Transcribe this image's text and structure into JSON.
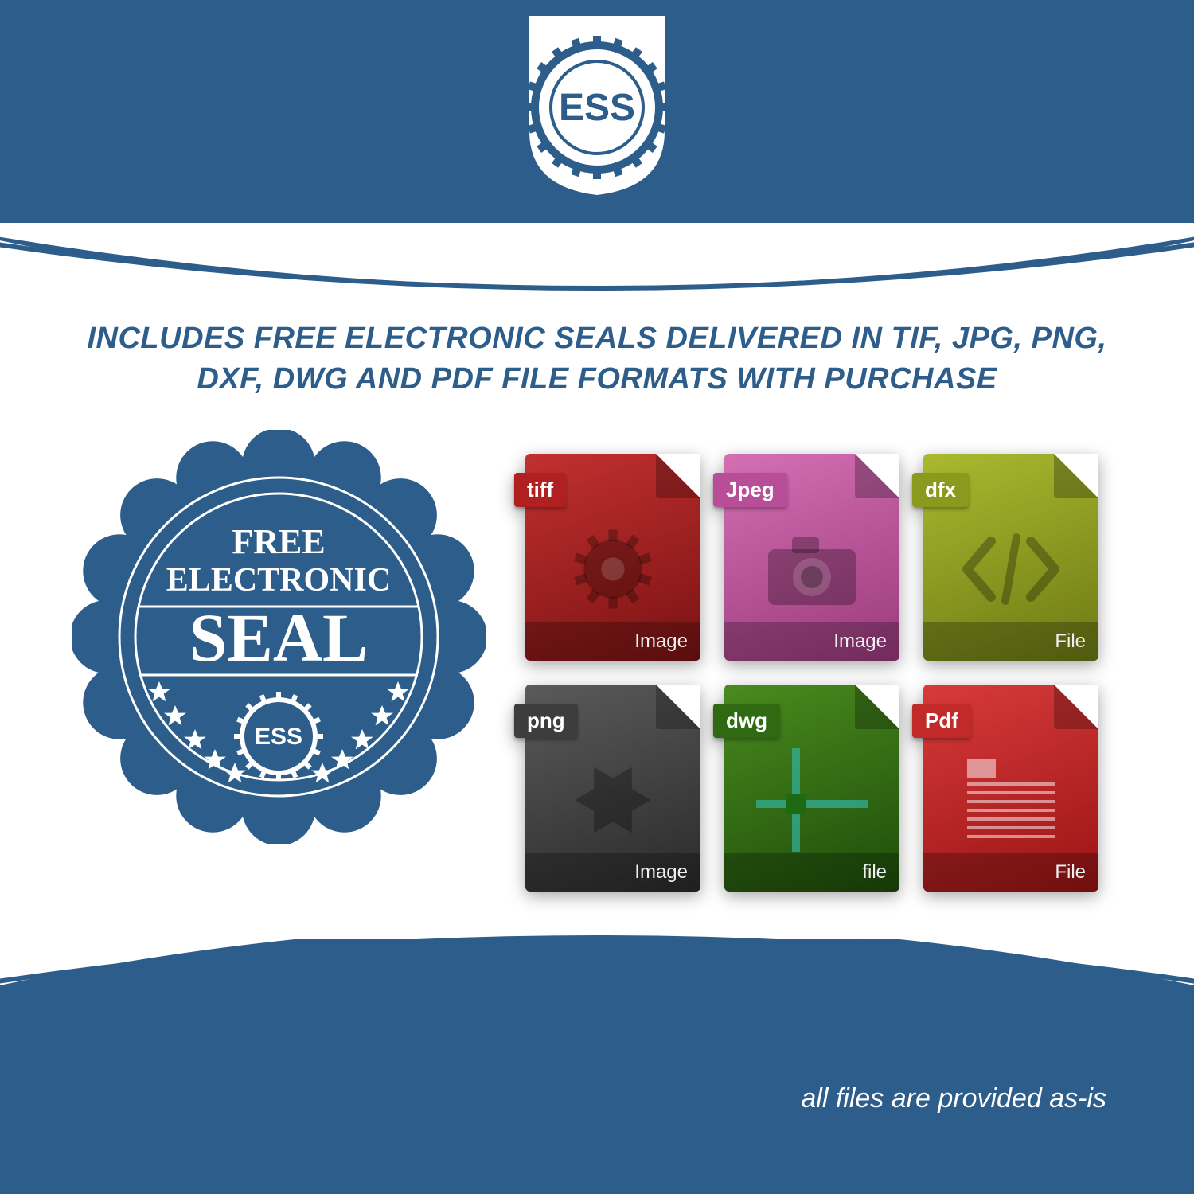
{
  "colors": {
    "brand_blue": "#2d5d8a",
    "white": "#ffffff",
    "shadow": "rgba(0,0,0,0.35)"
  },
  "logo": {
    "text": "ESS"
  },
  "headline": "INCLUDES FREE ELECTRONIC SEALS DELIVERED IN TIF, JPG, PNG, DXF, DWG AND PDF FILE FORMATS WITH PURCHASE",
  "seal": {
    "line1": "FREE",
    "line2": "ELECTRONIC",
    "line3": "SEAL",
    "gear_text": "ESS",
    "star_count": 10,
    "color": "#2d5d8a"
  },
  "file_icons": [
    {
      "label": "tiff",
      "bottom": "Image",
      "body_gradient": [
        "#c23030",
        "#7a1212"
      ],
      "tab_color": "#b02020",
      "glyph": "gear"
    },
    {
      "label": "Jpeg",
      "bottom": "Image",
      "body_gradient": [
        "#d46fb3",
        "#9a3a7d"
      ],
      "tab_color": "#b94e98",
      "glyph": "camera"
    },
    {
      "label": "dfx",
      "bottom": "File",
      "body_gradient": [
        "#aab92f",
        "#6d7a14"
      ],
      "tab_color": "#8a9a1e",
      "glyph": "code"
    },
    {
      "label": "png",
      "bottom": "Image",
      "body_gradient": [
        "#5a5a5a",
        "#2a2a2a"
      ],
      "tab_color": "#3d3d3d",
      "glyph": "burst"
    },
    {
      "label": "dwg",
      "bottom": "file",
      "body_gradient": [
        "#4a8a1e",
        "#1e4d0a"
      ],
      "tab_color": "#2f6a12",
      "glyph": "cross"
    },
    {
      "label": "Pdf",
      "bottom": "File",
      "body_gradient": [
        "#d83a3a",
        "#9a1414"
      ],
      "tab_color": "#c22a2a",
      "glyph": "doc"
    }
  ],
  "footnote": "all files are provided as-is"
}
